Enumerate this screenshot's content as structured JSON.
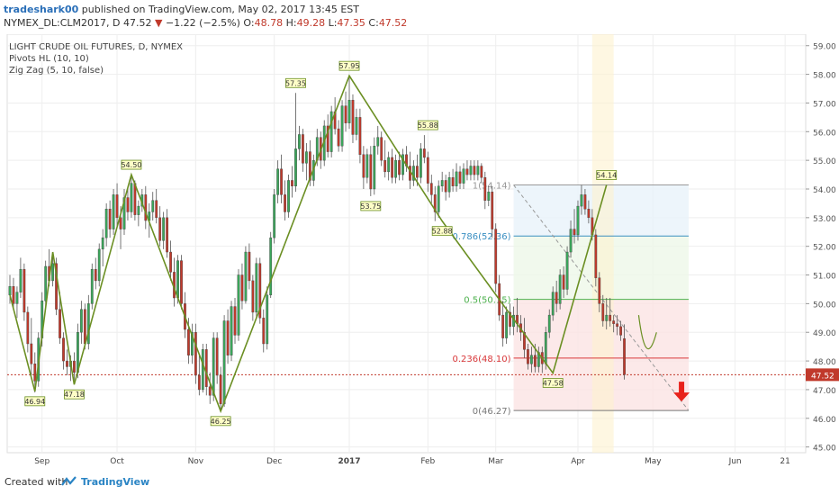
{
  "header": {
    "user": "tradeshark00",
    "published_text": "published on TradingView.com, May 02, 2017 13:45 EST",
    "symbol": "NYMEX_DL:CLM2017, D",
    "last": "47.52",
    "change": "−1.22 (−2.5%)",
    "o_label": "O:",
    "o": "48.78",
    "h_label": "H:",
    "h": "49.28",
    "l_label": "L:",
    "l": "47.35",
    "c_label": "C:",
    "c": "47.52"
  },
  "indicators": {
    "title": "LIGHT CRUDE OIL FUTURES, D, NYMEX",
    "pivots": "Pivots HL (10, 10)",
    "zigzag": "Zig Zag (5, 10, false)"
  },
  "footer": {
    "created_with": "Created with",
    "brand": "TradingView"
  },
  "colors": {
    "up": "#3aa65a",
    "down": "#c0392b",
    "zigzag": "#6b8f23",
    "grid": "#eeeeee"
  },
  "chart_data": {
    "type": "candlestick",
    "title": "LIGHT CRUDE OIL FUTURES, D, NYMEX",
    "ylim": [
      44.8,
      59.4
    ],
    "y_ticks": [
      "45.00",
      "46.00",
      "47.00",
      "48.00",
      "49.00",
      "50.00",
      "51.00",
      "52.00",
      "53.00",
      "54.00",
      "55.00",
      "56.00",
      "57.00",
      "58.00",
      "59.00"
    ],
    "x_ticks": [
      {
        "label": "Sep",
        "i": 9
      },
      {
        "label": "Oct",
        "i": 30
      },
      {
        "label": "Nov",
        "i": 52
      },
      {
        "label": "Dec",
        "i": 74
      },
      {
        "label": "2017",
        "i": 95
      },
      {
        "label": "Feb",
        "i": 117
      },
      {
        "label": "Mar",
        "i": 136
      },
      {
        "label": "Apr",
        "i": 159
      },
      {
        "label": "May",
        "i": 180
      },
      {
        "label": "Jun",
        "i": 203
      },
      {
        "label": "21",
        "i": 217
      }
    ],
    "last_price": {
      "value": 47.52,
      "label": "47.52"
    },
    "pivots": [
      {
        "i": 7,
        "value": 46.94,
        "label": "46.94",
        "pos": "below"
      },
      {
        "i": 18,
        "value": 47.18,
        "label": "47.18",
        "pos": "below"
      },
      {
        "i": 34,
        "value": 54.5,
        "label": "54.50",
        "pos": "above"
      },
      {
        "i": 59,
        "value": 46.25,
        "label": "46.25",
        "pos": "below"
      },
      {
        "i": 80,
        "value": 57.35,
        "label": "57.35",
        "pos": "above"
      },
      {
        "i": 95,
        "value": 57.95,
        "label": "57.95",
        "pos": "above"
      },
      {
        "i": 101,
        "value": 53.75,
        "label": "53.75",
        "pos": "below"
      },
      {
        "i": 117,
        "value": 55.88,
        "label": "55.88",
        "pos": "above"
      },
      {
        "i": 121,
        "value": 52.88,
        "label": "52.88",
        "pos": "below"
      },
      {
        "i": 152,
        "value": 47.58,
        "label": "47.58",
        "pos": "below"
      },
      {
        "i": 167,
        "value": 54.14,
        "label": "54.14",
        "pos": "above"
      }
    ],
    "zigzag": [
      [
        0,
        50.3
      ],
      [
        7,
        46.94
      ],
      [
        12,
        51.8
      ],
      [
        18,
        47.18
      ],
      [
        34,
        54.5
      ],
      [
        59,
        46.25
      ],
      [
        95,
        57.95
      ],
      [
        121,
        52.88
      ],
      [
        152,
        47.58
      ],
      [
        167,
        54.14
      ]
    ],
    "fib": {
      "from_i": 141,
      "to_i": 190,
      "levels": [
        {
          "ratio": "1",
          "value": 54.14,
          "label": "1(54.14)",
          "color": "#999999",
          "fill": "#f3f3f3"
        },
        {
          "ratio": "0.786",
          "value": 52.36,
          "label": "0.786(52.36)",
          "color": "#3a8fc2",
          "fill": "#e9f2fa"
        },
        {
          "ratio": "0.5",
          "value": 50.15,
          "label": "0.5(50.15)",
          "color": "#4cb04c",
          "fill": "#eef7e8"
        },
        {
          "ratio": "0.236",
          "value": 48.1,
          "label": "0.236(48.10)",
          "color": "#d9383a",
          "fill": "#fbe4e4"
        },
        {
          "ratio": "0",
          "value": 46.27,
          "label": "0(46.27)",
          "color": "#777777",
          "fill": "#fbe4e4"
        }
      ]
    },
    "candles": [
      [
        50.3,
        51.0,
        50.0,
        50.6
      ],
      [
        50.6,
        50.9,
        49.8,
        50.0
      ],
      [
        50.0,
        50.6,
        49.5,
        50.4
      ],
      [
        50.4,
        51.6,
        50.2,
        51.2
      ],
      [
        51.2,
        51.4,
        49.4,
        49.7
      ],
      [
        49.7,
        49.9,
        48.3,
        48.6
      ],
      [
        48.6,
        49.5,
        47.5,
        47.9
      ],
      [
        47.9,
        48.3,
        46.9,
        47.3
      ],
      [
        47.3,
        49.0,
        47.1,
        48.8
      ],
      [
        48.8,
        50.4,
        48.5,
        50.1
      ],
      [
        50.1,
        51.5,
        49.9,
        51.3
      ],
      [
        51.3,
        51.9,
        50.6,
        50.8
      ],
      [
        50.8,
        51.8,
        50.6,
        51.4
      ],
      [
        51.4,
        51.6,
        49.6,
        49.8
      ],
      [
        49.8,
        50.4,
        48.6,
        48.8
      ],
      [
        48.8,
        49.0,
        47.7,
        48.0
      ],
      [
        48.0,
        48.4,
        47.5,
        47.8
      ],
      [
        47.8,
        48.2,
        47.3,
        48.0
      ],
      [
        48.0,
        48.3,
        47.18,
        47.6
      ],
      [
        47.6,
        49.3,
        47.4,
        49.0
      ],
      [
        49.0,
        50.1,
        48.6,
        49.8
      ],
      [
        49.8,
        50.0,
        48.4,
        48.6
      ],
      [
        48.6,
        50.3,
        48.4,
        50.0
      ],
      [
        50.0,
        51.4,
        49.8,
        51.2
      ],
      [
        51.2,
        51.6,
        50.5,
        50.8
      ],
      [
        50.8,
        52.1,
        50.6,
        51.9
      ],
      [
        51.9,
        52.6,
        51.3,
        52.3
      ],
      [
        52.3,
        53.5,
        52.0,
        53.3
      ],
      [
        53.3,
        53.6,
        52.3,
        52.6
      ],
      [
        52.6,
        54.0,
        52.4,
        53.8
      ],
      [
        53.8,
        54.2,
        52.7,
        53.0
      ],
      [
        53.0,
        53.4,
        51.9,
        52.6
      ],
      [
        52.6,
        54.0,
        52.4,
        53.7
      ],
      [
        53.7,
        54.1,
        52.9,
        53.2
      ],
      [
        53.2,
        54.5,
        53.0,
        54.2
      ],
      [
        54.2,
        54.3,
        52.9,
        53.1
      ],
      [
        53.1,
        53.6,
        52.7,
        53.4
      ],
      [
        53.4,
        54.0,
        53.2,
        53.8
      ],
      [
        53.8,
        54.1,
        52.6,
        52.9
      ],
      [
        52.9,
        53.5,
        52.3,
        53.2
      ],
      [
        53.2,
        53.9,
        52.9,
        53.6
      ],
      [
        53.6,
        54.0,
        52.8,
        53.0
      ],
      [
        53.0,
        53.4,
        52.0,
        52.2
      ],
      [
        52.2,
        53.2,
        51.9,
        53.0
      ],
      [
        53.0,
        53.3,
        51.6,
        51.8
      ],
      [
        51.8,
        52.2,
        50.8,
        51.1
      ],
      [
        51.1,
        51.6,
        49.9,
        50.2
      ],
      [
        50.2,
        51.7,
        50.0,
        51.5
      ],
      [
        51.5,
        51.7,
        49.8,
        50.0
      ],
      [
        50.0,
        50.4,
        48.8,
        49.1
      ],
      [
        49.1,
        49.5,
        47.9,
        48.2
      ],
      [
        48.2,
        49.3,
        47.9,
        49.0
      ],
      [
        49.0,
        49.3,
        47.2,
        47.5
      ],
      [
        47.5,
        48.2,
        46.8,
        47.0
      ],
      [
        47.0,
        48.6,
        46.9,
        48.4
      ],
      [
        48.4,
        48.6,
        46.8,
        47.1
      ],
      [
        47.1,
        47.6,
        46.5,
        46.8
      ],
      [
        46.8,
        49.0,
        46.6,
        48.8
      ],
      [
        48.8,
        49.0,
        47.2,
        47.5
      ],
      [
        47.5,
        47.8,
        46.25,
        46.5
      ],
      [
        46.5,
        49.6,
        46.4,
        49.4
      ],
      [
        49.4,
        49.8,
        47.9,
        48.2
      ],
      [
        48.2,
        50.1,
        48.0,
        49.9
      ],
      [
        49.9,
        50.2,
        48.6,
        48.9
      ],
      [
        48.9,
        51.2,
        48.7,
        51.0
      ],
      [
        51.0,
        51.4,
        49.8,
        50.1
      ],
      [
        50.1,
        52.0,
        50.0,
        51.8
      ],
      [
        51.8,
        52.1,
        50.5,
        50.8
      ],
      [
        50.8,
        51.0,
        49.4,
        49.7
      ],
      [
        49.7,
        51.6,
        49.5,
        51.4
      ],
      [
        51.4,
        51.6,
        49.3,
        49.5
      ],
      [
        49.5,
        49.8,
        48.3,
        48.6
      ],
      [
        48.6,
        50.6,
        48.4,
        50.3
      ],
      [
        50.3,
        52.5,
        50.2,
        52.3
      ],
      [
        52.3,
        54.0,
        52.1,
        53.8
      ],
      [
        53.8,
        55.0,
        53.5,
        54.7
      ],
      [
        54.7,
        55.2,
        53.5,
        53.8
      ],
      [
        53.8,
        54.3,
        52.9,
        53.2
      ],
      [
        53.2,
        54.5,
        53.0,
        54.3
      ],
      [
        54.3,
        54.8,
        53.7,
        54.1
      ],
      [
        54.1,
        57.35,
        53.9,
        55.4
      ],
      [
        55.4,
        56.2,
        55.0,
        55.9
      ],
      [
        55.9,
        56.1,
        54.6,
        54.9
      ],
      [
        54.9,
        55.6,
        54.3,
        55.3
      ],
      [
        55.3,
        55.7,
        54.1,
        54.3
      ],
      [
        54.3,
        55.2,
        54.1,
        55.0
      ],
      [
        55.0,
        56.1,
        54.8,
        55.8
      ],
      [
        55.8,
        56.0,
        54.7,
        55.0
      ],
      [
        55.0,
        56.4,
        54.8,
        56.2
      ],
      [
        56.2,
        56.6,
        55.1,
        55.3
      ],
      [
        55.3,
        56.9,
        55.1,
        56.7
      ],
      [
        56.7,
        57.2,
        55.9,
        56.1
      ],
      [
        56.1,
        56.4,
        55.3,
        55.5
      ],
      [
        55.5,
        57.1,
        55.3,
        56.9
      ],
      [
        56.9,
        57.4,
        56.0,
        56.3
      ],
      [
        56.3,
        57.95,
        56.1,
        57.1
      ],
      [
        57.1,
        57.3,
        55.6,
        55.9
      ],
      [
        55.9,
        56.8,
        55.7,
        56.5
      ],
      [
        56.5,
        56.8,
        54.9,
        55.2
      ],
      [
        55.2,
        55.5,
        54.0,
        54.4
      ],
      [
        54.4,
        55.4,
        54.2,
        55.2
      ],
      [
        55.2,
        55.5,
        53.75,
        54.0
      ],
      [
        54.0,
        55.8,
        53.8,
        55.5
      ],
      [
        55.5,
        56.2,
        55.2,
        55.8
      ],
      [
        55.8,
        56.0,
        54.8,
        55.0
      ],
      [
        55.0,
        55.7,
        54.4,
        54.6
      ],
      [
        54.6,
        55.3,
        54.3,
        55.1
      ],
      [
        55.1,
        55.4,
        54.2,
        54.4
      ],
      [
        54.4,
        55.2,
        54.2,
        55.0
      ],
      [
        55.0,
        55.3,
        54.3,
        54.5
      ],
      [
        54.5,
        55.4,
        54.3,
        55.2
      ],
      [
        55.2,
        55.5,
        54.6,
        54.8
      ],
      [
        54.8,
        55.3,
        54.0,
        54.3
      ],
      [
        54.3,
        55.0,
        54.1,
        54.8
      ],
      [
        54.8,
        55.2,
        54.1,
        54.4
      ],
      [
        54.4,
        55.6,
        54.2,
        55.4
      ],
      [
        55.4,
        55.88,
        54.9,
        55.1
      ],
      [
        55.1,
        55.3,
        53.9,
        54.2
      ],
      [
        54.2,
        54.5,
        53.5,
        53.8
      ],
      [
        53.8,
        54.1,
        52.88,
        53.2
      ],
      [
        53.2,
        54.3,
        53.0,
        54.1
      ],
      [
        54.1,
        54.6,
        53.9,
        54.3
      ],
      [
        54.3,
        54.5,
        53.6,
        53.9
      ],
      [
        53.9,
        54.6,
        53.7,
        54.4
      ],
      [
        54.4,
        54.7,
        53.9,
        54.1
      ],
      [
        54.1,
        54.9,
        53.9,
        54.6
      ],
      [
        54.6,
        54.8,
        54.0,
        54.2
      ],
      [
        54.2,
        54.9,
        54.0,
        54.7
      ],
      [
        54.7,
        55.0,
        54.3,
        54.5
      ],
      [
        54.5,
        55.0,
        54.3,
        54.8
      ],
      [
        54.8,
        55.0,
        54.3,
        54.5
      ],
      [
        54.5,
        55.0,
        54.3,
        54.8
      ],
      [
        54.8,
        54.9,
        54.2,
        54.4
      ],
      [
        54.4,
        54.6,
        53.3,
        53.6
      ],
      [
        53.6,
        54.1,
        53.4,
        53.9
      ],
      [
        53.9,
        54.1,
        52.3,
        52.6
      ],
      [
        52.6,
        52.8,
        50.4,
        50.7
      ],
      [
        50.7,
        51.0,
        49.4,
        49.6
      ],
      [
        49.6,
        50.1,
        48.5,
        48.8
      ],
      [
        48.8,
        49.9,
        48.6,
        49.7
      ],
      [
        49.7,
        50.0,
        48.9,
        49.2
      ],
      [
        49.2,
        49.9,
        48.9,
        49.6
      ],
      [
        49.6,
        50.2,
        49.0,
        49.3
      ],
      [
        49.3,
        49.6,
        48.7,
        49.0
      ],
      [
        49.0,
        49.5,
        48.1,
        48.4
      ],
      [
        48.4,
        48.6,
        47.7,
        47.9
      ],
      [
        47.9,
        48.5,
        47.6,
        48.2
      ],
      [
        48.2,
        48.6,
        47.6,
        47.8
      ],
      [
        47.8,
        48.5,
        47.6,
        48.3
      ],
      [
        48.3,
        48.5,
        47.58,
        47.9
      ],
      [
        47.9,
        49.2,
        47.7,
        49.0
      ],
      [
        49.0,
        49.8,
        48.8,
        49.6
      ],
      [
        49.6,
        50.6,
        49.4,
        50.4
      ],
      [
        50.4,
        50.8,
        49.7,
        50.0
      ],
      [
        50.0,
        51.2,
        49.8,
        51.0
      ],
      [
        51.0,
        51.3,
        50.2,
        50.5
      ],
      [
        50.5,
        52.0,
        50.3,
        51.8
      ],
      [
        51.8,
        52.9,
        51.6,
        52.6
      ],
      [
        52.6,
        53.3,
        52.1,
        52.4
      ],
      [
        52.4,
        53.6,
        52.2,
        53.4
      ],
      [
        53.4,
        54.14,
        53.1,
        53.8
      ],
      [
        53.8,
        54.0,
        53.1,
        53.3
      ],
      [
        53.3,
        53.6,
        52.8,
        53.0
      ],
      [
        53.0,
        53.3,
        52.2,
        52.4
      ],
      [
        52.4,
        52.6,
        50.6,
        50.9
      ],
      [
        50.9,
        51.1,
        49.7,
        50.0
      ],
      [
        50.0,
        50.3,
        49.2,
        49.4
      ],
      [
        49.4,
        50.2,
        49.1,
        49.6
      ],
      [
        49.6,
        50.2,
        49.2,
        49.4
      ],
      [
        49.4,
        49.6,
        49.0,
        49.3
      ],
      [
        49.3,
        49.6,
        48.9,
        49.2
      ],
      [
        49.2,
        49.4,
        48.7,
        48.9
      ],
      [
        48.78,
        49.28,
        47.35,
        47.52
      ]
    ]
  }
}
